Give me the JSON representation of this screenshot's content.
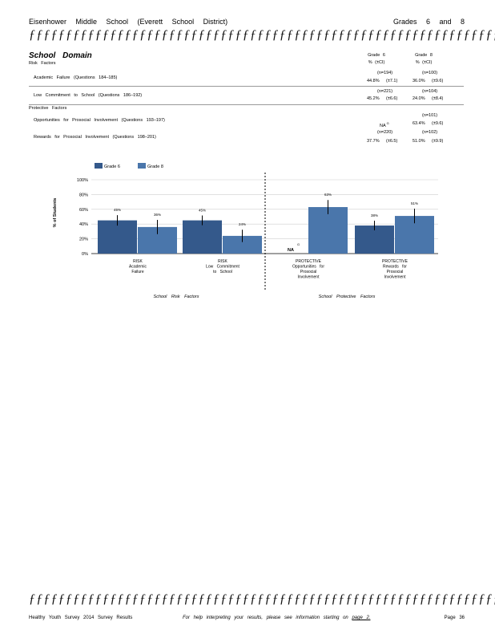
{
  "header": {
    "school": "Eisenhower Middle School (Everett School District)",
    "grades": "Grades 6 and 8",
    "rule": "ƒƒƒƒƒƒƒƒƒƒƒƒƒƒƒƒƒƒƒƒƒƒƒƒƒƒƒƒƒƒƒƒƒƒƒƒƒƒƒƒƒƒƒƒƒƒƒƒƒƒƒƒƒƒƒƒƒƒƒƒƒƒƒƒƒƒ"
  },
  "table": {
    "title": "School Domain",
    "col_g6": {
      "grade": "Grade 6",
      "sub": "% (±CI)"
    },
    "col_g8": {
      "grade": "Grade 8",
      "sub": "% (±CI)"
    },
    "risk_heading": "Risk Factors",
    "protective_heading": "Protective Factors",
    "rows": [
      {
        "label": "Academic Failure (Questions 184–185)",
        "g6_n": "",
        "g6_pct": "44.8%",
        "g6_ci": "(±7.1)",
        "g8_n": "(n=100)",
        "g8_pct": "36.0%",
        "g8_ci": "(±9.6)",
        "g6_n_top": "(n=194)"
      },
      {
        "label": "Low Commitment to School (Questions 186–192)",
        "g6_n_top": "(n=221)",
        "g6_pct": "45.2%",
        "g6_ci": "(±6.6)",
        "g8_n": "(n=104)",
        "g8_pct": "24.0%",
        "g8_ci": "(±8.4)"
      },
      {
        "label": "Opportunities for Prosocial Involvement (Questions 193–197)",
        "g6_n_top": "",
        "g6_pct": "NA",
        "g6_sup": "G",
        "g6_ci": "",
        "g8_n": "(n=101)",
        "g8_pct": "63.4%",
        "g8_ci": "(±9.6)"
      },
      {
        "label": "Rewards for Prosocial Involvement (Questions 198–201)",
        "g6_n_top": "(n=220)",
        "g6_pct": "37.7%",
        "g6_ci": "(±6.5)",
        "g8_n": "(n=102)",
        "g8_pct": "51.0%",
        "g8_ci": "(±9.9)"
      }
    ]
  },
  "chart_data": {
    "type": "bar",
    "ylabel": "% of Students",
    "ylim": [
      0,
      100
    ],
    "yticks": [
      "0%",
      "20%",
      "40%",
      "60%",
      "80%",
      "100%"
    ],
    "legend_position": "top-left",
    "series": [
      {
        "name": "Grade 6",
        "color": "#34598b",
        "values": [
          45,
          45,
          null,
          38
        ],
        "labels": [
          "45%",
          "45%",
          "NA",
          "38%"
        ]
      },
      {
        "name": "Grade 8",
        "color": "#4a76ab",
        "values": [
          36,
          24,
          63,
          51
        ],
        "labels": [
          "36%",
          "24%",
          "63%",
          "51%"
        ]
      }
    ],
    "ci": {
      "Grade 6": [
        7.1,
        6.6,
        null,
        6.5
      ],
      "Grade 8": [
        9.6,
        8.4,
        9.6,
        9.9
      ]
    },
    "na_superscript": "G",
    "categories": [
      [
        "RISK",
        "Academic",
        "Failure"
      ],
      [
        "RISK",
        "Low Commitment",
        "to School"
      ],
      [
        "PROTECTIVE",
        "Opportunities for",
        "Prosocial",
        "Involvement"
      ],
      [
        "PROTECTIVE",
        "Rewards for",
        "Prosocial",
        "Involvement"
      ]
    ],
    "group_labels": [
      "School Risk Factors",
      "School Protective Factors"
    ]
  },
  "footer": {
    "rule": "ƒƒƒƒƒƒƒƒƒƒƒƒƒƒƒƒƒƒƒƒƒƒƒƒƒƒƒƒƒƒƒƒƒƒƒƒƒƒƒƒƒƒƒƒƒƒƒƒƒƒƒƒƒƒƒƒƒƒƒƒƒƒƒƒƒƒ",
    "survey": "Healthy Youth Survey 2014 Survey Results",
    "help": "For help interpreting your results, please see information starting on",
    "help_link": "page 2.",
    "page": "Page 36"
  }
}
